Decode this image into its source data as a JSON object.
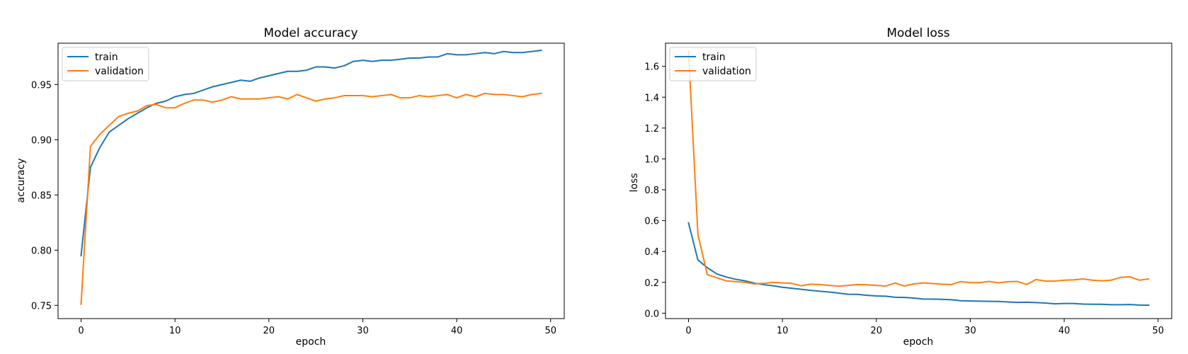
{
  "colors": {
    "train": "#1f77b4",
    "validation": "#ff7f0e"
  },
  "chart_data": [
    {
      "type": "line",
      "title": "Model accuracy",
      "xlabel": "epoch",
      "ylabel": "accuracy",
      "xlim": [
        -2.45,
        51.45
      ],
      "ylim": [
        0.738,
        0.9875
      ],
      "xticks": [
        0,
        10,
        20,
        30,
        40,
        50
      ],
      "yticks": [
        0.75,
        0.8,
        0.85,
        0.9,
        0.95
      ],
      "ytick_labels": [
        "0.75",
        "0.80",
        "0.85",
        "0.90",
        "0.95"
      ],
      "legend": "upper-left",
      "grid": false,
      "x": [
        0,
        1,
        2,
        3,
        4,
        5,
        6,
        7,
        8,
        9,
        10,
        11,
        12,
        13,
        14,
        15,
        16,
        17,
        18,
        19,
        20,
        21,
        22,
        23,
        24,
        25,
        26,
        27,
        28,
        29,
        30,
        31,
        32,
        33,
        34,
        35,
        36,
        37,
        38,
        39,
        40,
        41,
        42,
        43,
        44,
        45,
        46,
        47,
        48,
        49
      ],
      "series": [
        {
          "name": "train",
          "color": "#1f77b4",
          "values": [
            0.795,
            0.875,
            0.893,
            0.907,
            0.913,
            0.919,
            0.924,
            0.929,
            0.933,
            0.935,
            0.939,
            0.941,
            0.942,
            0.945,
            0.948,
            0.95,
            0.952,
            0.954,
            0.953,
            0.956,
            0.958,
            0.96,
            0.962,
            0.962,
            0.963,
            0.966,
            0.966,
            0.965,
            0.967,
            0.971,
            0.972,
            0.971,
            0.972,
            0.972,
            0.973,
            0.974,
            0.974,
            0.975,
            0.975,
            0.978,
            0.977,
            0.977,
            0.978,
            0.979,
            0.978,
            0.98,
            0.979,
            0.979,
            0.98,
            0.981
          ]
        },
        {
          "name": "validation",
          "color": "#ff7f0e",
          "values": [
            0.751,
            0.894,
            0.905,
            0.913,
            0.921,
            0.924,
            0.926,
            0.931,
            0.932,
            0.929,
            0.929,
            0.933,
            0.936,
            0.936,
            0.934,
            0.936,
            0.939,
            0.937,
            0.937,
            0.937,
            0.938,
            0.939,
            0.937,
            0.941,
            0.938,
            0.935,
            0.937,
            0.938,
            0.94,
            0.94,
            0.94,
            0.939,
            0.94,
            0.941,
            0.938,
            0.938,
            0.94,
            0.939,
            0.94,
            0.941,
            0.938,
            0.941,
            0.939,
            0.942,
            0.941,
            0.941,
            0.94,
            0.939,
            0.941,
            0.942
          ]
        }
      ]
    },
    {
      "type": "line",
      "title": "Model loss",
      "xlabel": "epoch",
      "ylabel": "loss",
      "xlim": [
        -2.45,
        51.45
      ],
      "ylim": [
        -0.035,
        1.75
      ],
      "xticks": [
        0,
        10,
        20,
        30,
        40,
        50
      ],
      "yticks": [
        0.0,
        0.2,
        0.4,
        0.6,
        0.8,
        1.0,
        1.2,
        1.4,
        1.6
      ],
      "ytick_labels": [
        "0.0",
        "0.2",
        "0.4",
        "0.6",
        "0.8",
        "1.0",
        "1.2",
        "1.4",
        "1.6"
      ],
      "legend": "upper-left",
      "grid": false,
      "x": [
        0,
        1,
        2,
        3,
        4,
        5,
        6,
        7,
        8,
        9,
        10,
        11,
        12,
        13,
        14,
        15,
        16,
        17,
        18,
        19,
        20,
        21,
        22,
        23,
        24,
        25,
        26,
        27,
        28,
        29,
        30,
        31,
        32,
        33,
        34,
        35,
        36,
        37,
        38,
        39,
        40,
        41,
        42,
        43,
        44,
        45,
        46,
        47,
        48,
        49
      ],
      "series": [
        {
          "name": "train",
          "color": "#1f77b4",
          "values": [
            0.585,
            0.345,
            0.295,
            0.255,
            0.235,
            0.22,
            0.21,
            0.195,
            0.185,
            0.178,
            0.168,
            0.162,
            0.155,
            0.148,
            0.142,
            0.137,
            0.13,
            0.123,
            0.122,
            0.116,
            0.112,
            0.11,
            0.103,
            0.102,
            0.098,
            0.092,
            0.091,
            0.09,
            0.087,
            0.081,
            0.079,
            0.078,
            0.077,
            0.076,
            0.073,
            0.07,
            0.071,
            0.069,
            0.066,
            0.061,
            0.063,
            0.063,
            0.059,
            0.058,
            0.058,
            0.055,
            0.055,
            0.056,
            0.053,
            0.052
          ]
        },
        {
          "name": "validation",
          "color": "#ff7f0e",
          "values": [
            1.7,
            0.51,
            0.25,
            0.23,
            0.21,
            0.205,
            0.2,
            0.19,
            0.193,
            0.2,
            0.196,
            0.193,
            0.178,
            0.188,
            0.186,
            0.18,
            0.175,
            0.18,
            0.186,
            0.184,
            0.18,
            0.176,
            0.196,
            0.176,
            0.19,
            0.196,
            0.192,
            0.188,
            0.186,
            0.205,
            0.198,
            0.198,
            0.206,
            0.196,
            0.204,
            0.206,
            0.186,
            0.218,
            0.208,
            0.208,
            0.214,
            0.216,
            0.222,
            0.214,
            0.21,
            0.214,
            0.232,
            0.236,
            0.214,
            0.222
          ]
        }
      ]
    }
  ]
}
